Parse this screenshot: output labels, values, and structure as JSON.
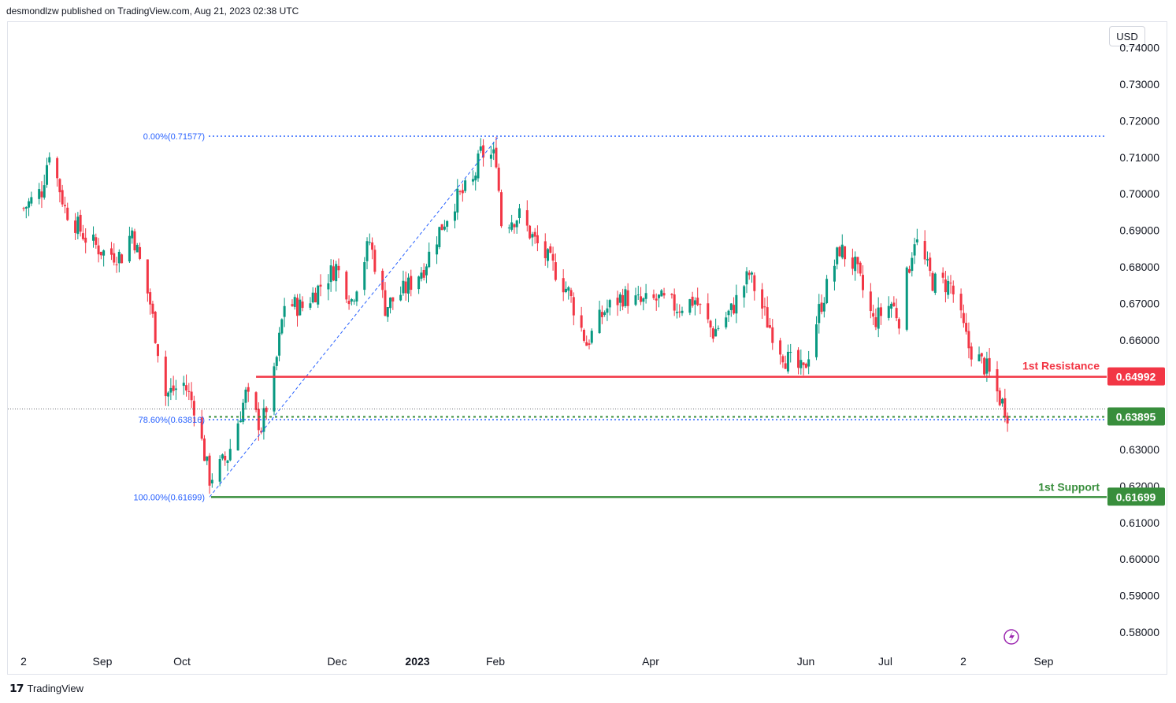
{
  "header": {
    "publisher": "desmondlzw published on TradingView.com, Aug 21, 2023 02:38 UTC"
  },
  "currency_label": "USD",
  "footer": {
    "brand": "TradingView"
  },
  "colors": {
    "up": "#26a69a",
    "up_candle": "#089981",
    "down": "#f23645",
    "resistance": "#f23645",
    "support": "#388e3c",
    "fib": "#2962ff",
    "dotted_level": "#388e3c"
  },
  "chart_data": {
    "type": "candlestick",
    "y_axis": {
      "ticks": [
        "0.74000",
        "0.73000",
        "0.72000",
        "0.71000",
        "0.70000",
        "0.69000",
        "0.68000",
        "0.67000",
        "0.66000",
        "0.63000",
        "0.62000",
        "0.61000",
        "0.60000",
        "0.59000",
        "0.58000"
      ],
      "range": [
        0.575,
        0.7435
      ]
    },
    "x_axis": {
      "ticks": [
        "2",
        "Sep",
        "Oct",
        "Dec",
        "2023",
        "Feb",
        "Apr",
        "Jun",
        "Jul",
        "2",
        "Sep"
      ]
    },
    "levels": [
      {
        "name": "1st Resistance",
        "value": 0.64992,
        "label": "0.64992",
        "color": "#f23645"
      },
      {
        "name": "1st Support",
        "value": 0.61699,
        "label": "0.61699",
        "color": "#388e3c"
      },
      {
        "name": "current",
        "value": 0.63895,
        "label": "0.63895",
        "color": "#388e3c"
      }
    ],
    "fibonacci": [
      {
        "label": "0.00%(0.71577)",
        "value": 0.71577
      },
      {
        "label": "78.60%(0.63816)",
        "value": 0.63816
      },
      {
        "label": "100.00%(0.61699)",
        "value": 0.61699
      }
    ],
    "close_path": [
      [
        "2022-08-02",
        0.696
      ],
      [
        "2022-08-09",
        0.701
      ],
      [
        "2022-08-12",
        0.712
      ],
      [
        "2022-08-18",
        0.696
      ],
      [
        "2022-08-26",
        0.688
      ],
      [
        "2022-09-02",
        0.684
      ],
      [
        "2022-09-09",
        0.683
      ],
      [
        "2022-09-13",
        0.69
      ],
      [
        "2022-09-20",
        0.67
      ],
      [
        "2022-09-26",
        0.645
      ],
      [
        "2022-10-03",
        0.648
      ],
      [
        "2022-10-07",
        0.642
      ],
      [
        "2022-10-13",
        0.622
      ],
      [
        "2022-10-20",
        0.628
      ],
      [
        "2022-10-27",
        0.645
      ],
      [
        "2022-11-02",
        0.636
      ],
      [
        "2022-11-07",
        0.65
      ],
      [
        "2022-11-11",
        0.67
      ],
      [
        "2022-11-18",
        0.669
      ],
      [
        "2022-11-25",
        0.675
      ],
      [
        "2022-12-01",
        0.68
      ],
      [
        "2022-12-07",
        0.671
      ],
      [
        "2022-12-14",
        0.687
      ],
      [
        "2022-12-20",
        0.669
      ],
      [
        "2022-12-28",
        0.674
      ],
      [
        "2023-01-04",
        0.68
      ],
      [
        "2023-01-10",
        0.69
      ],
      [
        "2023-01-16",
        0.698
      ],
      [
        "2023-01-23",
        0.703
      ],
      [
        "2023-01-26",
        0.711
      ],
      [
        "2023-02-01",
        0.71
      ],
      [
        "2023-02-03",
        0.692
      ],
      [
        "2023-02-10",
        0.694
      ],
      [
        "2023-02-16",
        0.687
      ],
      [
        "2023-02-23",
        0.68
      ],
      [
        "2023-03-01",
        0.673
      ],
      [
        "2023-03-08",
        0.659
      ],
      [
        "2023-03-15",
        0.668
      ],
      [
        "2023-03-22",
        0.672
      ],
      [
        "2023-03-29",
        0.67
      ],
      [
        "2023-04-05",
        0.671
      ],
      [
        "2023-04-12",
        0.669
      ],
      [
        "2023-04-19",
        0.671
      ],
      [
        "2023-04-26",
        0.662
      ],
      [
        "2023-05-03",
        0.668
      ],
      [
        "2023-05-10",
        0.678
      ],
      [
        "2023-05-17",
        0.665
      ],
      [
        "2023-05-24",
        0.655
      ],
      [
        "2023-05-31",
        0.651
      ],
      [
        "2023-06-06",
        0.668
      ],
      [
        "2023-06-14",
        0.685
      ],
      [
        "2023-06-20",
        0.68
      ],
      [
        "2023-06-27",
        0.665
      ],
      [
        "2023-07-04",
        0.67
      ],
      [
        "2023-07-07",
        0.666
      ],
      [
        "2023-07-13",
        0.688
      ],
      [
        "2023-07-20",
        0.676
      ],
      [
        "2023-07-27",
        0.675
      ],
      [
        "2023-08-03",
        0.658
      ],
      [
        "2023-08-10",
        0.652
      ],
      [
        "2023-08-15",
        0.644
      ],
      [
        "2023-08-18",
        0.64
      ]
    ]
  }
}
